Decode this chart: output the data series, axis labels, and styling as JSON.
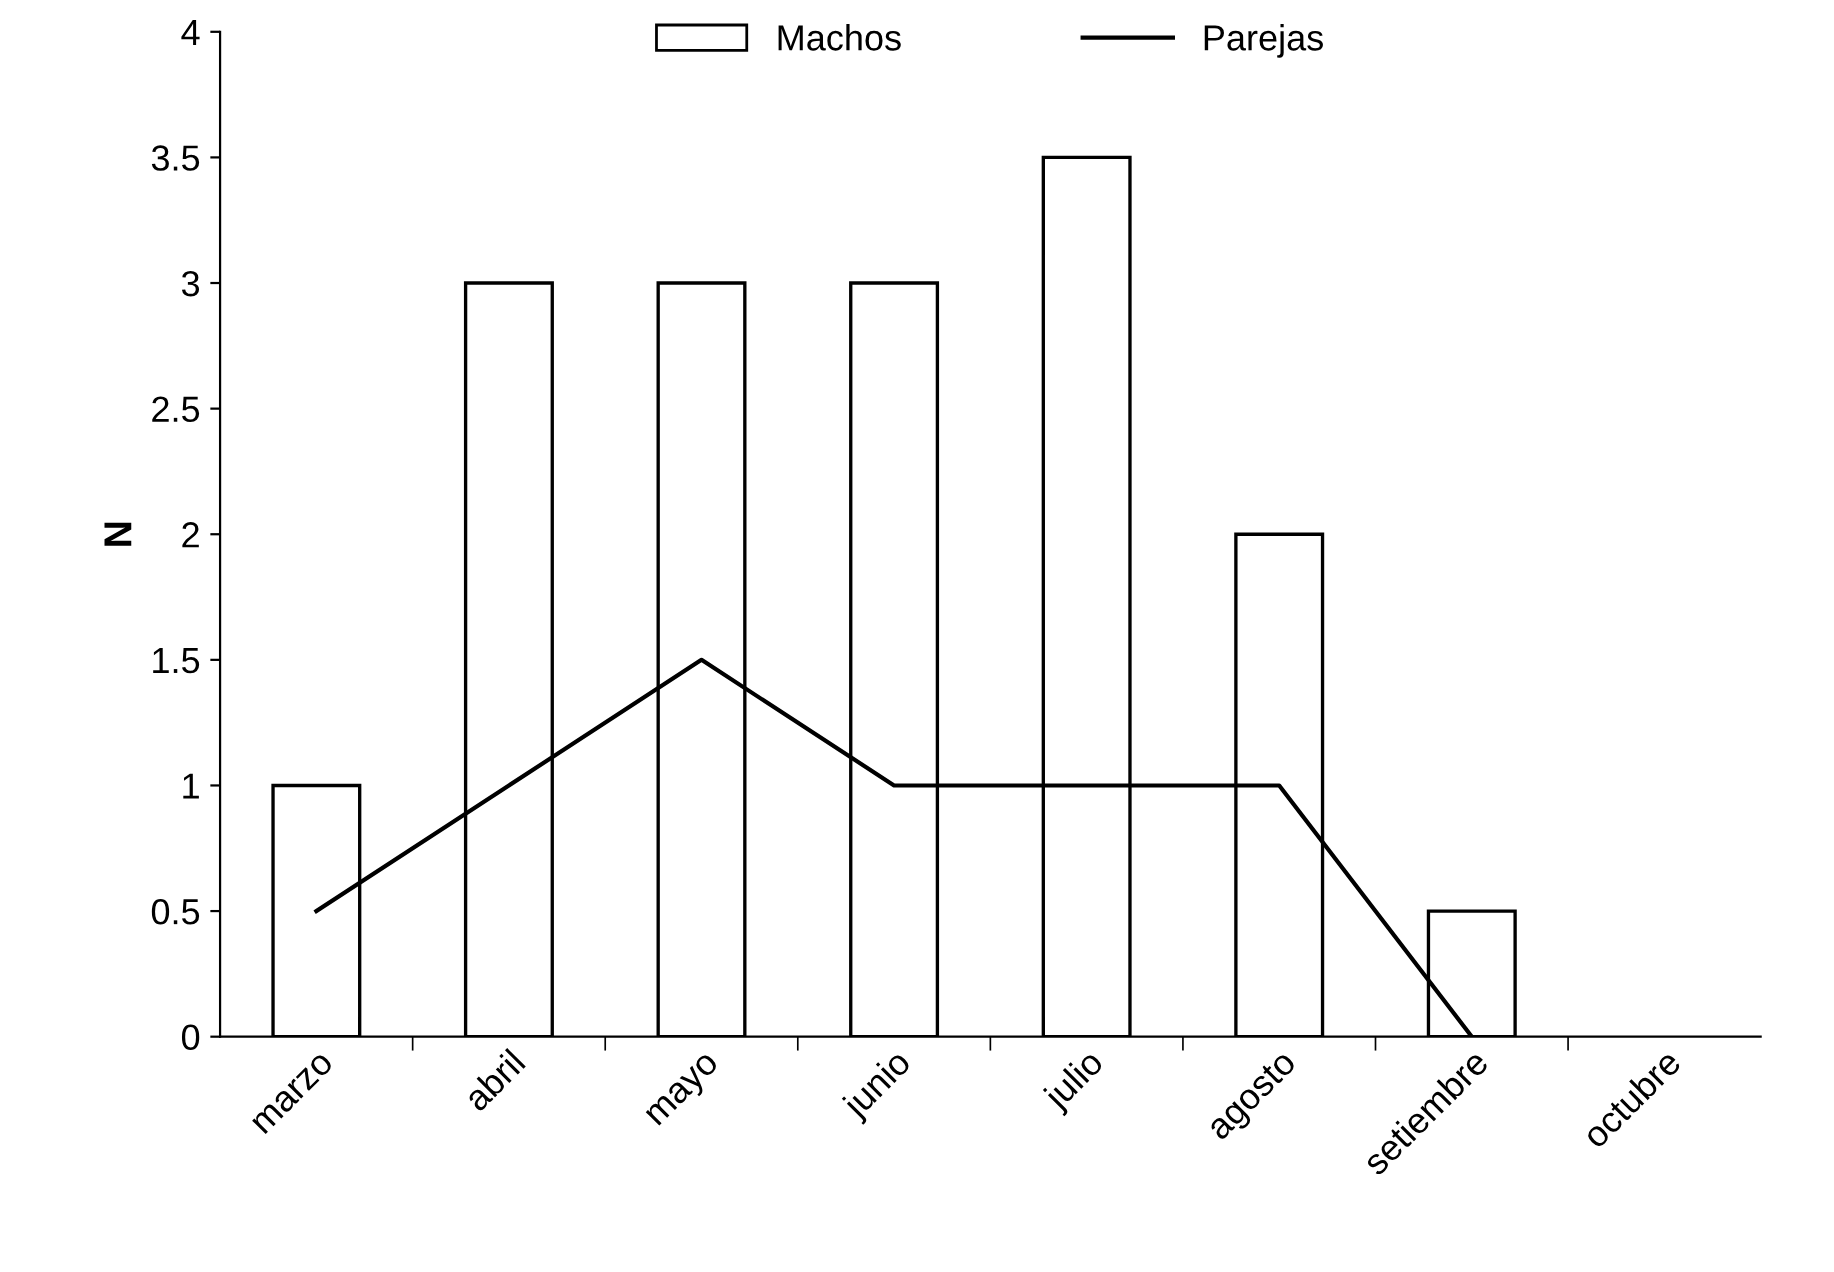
{
  "chart_data": {
    "type": "bar",
    "ylabel": "N",
    "categories": [
      "marzo",
      "abril",
      "mayo",
      "junio",
      "julio",
      "agosto",
      "setiembre",
      "octubre"
    ],
    "series": [
      {
        "name": "Machos",
        "color": "#ffffff",
        "values": [
          1,
          3,
          3,
          3,
          3.5,
          2,
          0.5,
          null
        ]
      },
      {
        "name": "Parejas",
        "type": "line",
        "color": "#000000",
        "values": [
          0.5,
          1,
          1.5,
          1,
          1,
          1,
          0,
          null
        ]
      }
    ],
    "ylim": [
      0,
      4
    ],
    "yticks": [
      0,
      0.5,
      1,
      1.5,
      2,
      2.5,
      3,
      3.5,
      4
    ],
    "grid": false,
    "legend": "top",
    "marker": "none",
    "line_style": "solid"
  }
}
